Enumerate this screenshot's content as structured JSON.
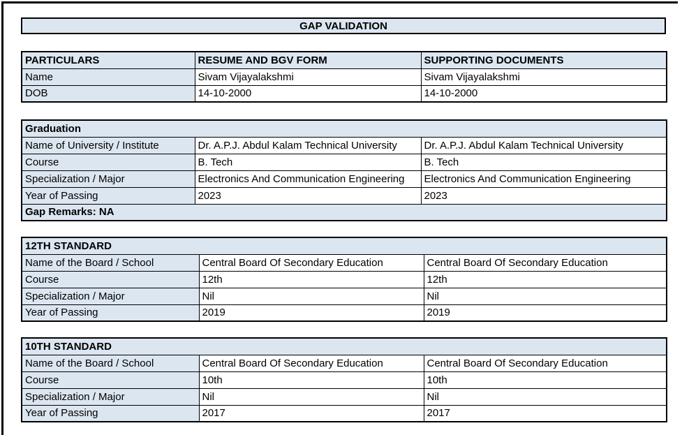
{
  "title": "GAP VALIDATION",
  "colors": {
    "fill": "#dce6f1",
    "border": "#000000"
  },
  "personal": {
    "headers": [
      "PARTICULARS",
      "RESUME AND BGV FORM",
      "SUPPORTING DOCUMENTS"
    ],
    "rows": [
      {
        "label": "Name",
        "resume": "Sivam Vijayalakshmi",
        "supporting": "Sivam Vijayalakshmi"
      },
      {
        "label": "DOB",
        "resume": "14-10-2000",
        "supporting": "14-10-2000"
      }
    ]
  },
  "sections": [
    {
      "title": "Graduation",
      "rows": [
        {
          "label": "Name of University / Institute",
          "resume": "Dr. A.P.J. Abdul Kalam Technical University",
          "supporting": "Dr. A.P.J. Abdul Kalam Technical University"
        },
        {
          "label": "Course",
          "resume": "B. Tech",
          "supporting": "B. Tech"
        },
        {
          "label": "Specialization / Major",
          "resume": "Electronics And Communication Engineering",
          "supporting": "Electronics And Communication Engineering"
        },
        {
          "label": "Year of Passing",
          "resume": "2023",
          "supporting": "2023"
        }
      ],
      "remarks": "Gap Remarks: NA"
    },
    {
      "title": "12TH STANDARD",
      "rows": [
        {
          "label": "Name of the Board / School",
          "resume": "Central Board Of Secondary Education",
          "supporting": "Central Board Of Secondary Education"
        },
        {
          "label": "Course",
          "resume": "12th",
          "supporting": "12th"
        },
        {
          "label": "Specialization / Major",
          "resume": "Nil",
          "supporting": "Nil"
        },
        {
          "label": "Year of Passing",
          "resume": "2019",
          "supporting": "2019"
        }
      ]
    },
    {
      "title": "10TH STANDARD",
      "rows": [
        {
          "label": "Name of the Board / School",
          "resume": "Central Board Of Secondary Education",
          "supporting": "Central Board Of Secondary Education"
        },
        {
          "label": "Course",
          "resume": "10th",
          "supporting": "10th"
        },
        {
          "label": "Specialization / Major",
          "resume": "Nil",
          "supporting": "Nil"
        },
        {
          "label": "Year of Passing",
          "resume": "2017",
          "supporting": "2017"
        }
      ]
    }
  ]
}
